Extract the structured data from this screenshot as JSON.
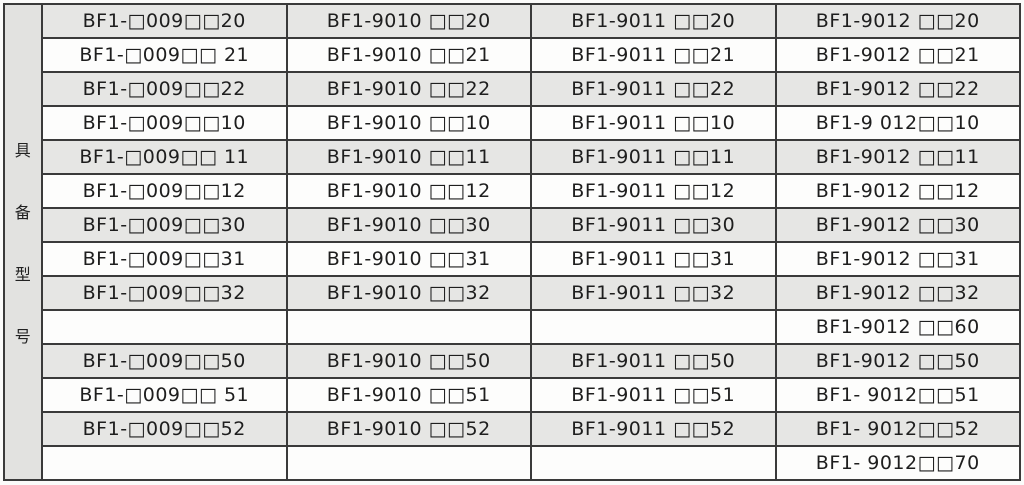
{
  "side_label": [
    "具",
    "备",
    "型",
    "号"
  ],
  "rows": [
    [
      "BF1-□009□□20",
      "BF1-9010 □□20",
      "BF1-9011 □□20",
      "BF1-9012 □□20"
    ],
    [
      "BF1-□009□□ 21",
      "BF1-9010 □□21",
      "BF1-9011 □□21",
      "BF1-9012 □□21"
    ],
    [
      "BF1-□009□□22",
      "BF1-9010 □□22",
      "BF1-9011 □□22",
      "BF1-9012 □□22"
    ],
    [
      "BF1-□009□□10",
      "BF1-9010 □□10",
      "BF1-9011 □□10",
      "BF1-9 012□□10"
    ],
    [
      "BF1-□009□□ 11",
      "BF1-9010 □□11",
      "BF1-9011 □□11",
      "BF1-9012 □□11"
    ],
    [
      "BF1-□009□□12",
      "BF1-9010 □□12",
      "BF1-9011 □□12",
      "BF1-9012 □□12"
    ],
    [
      "BF1-□009□□30",
      "BF1-9010 □□30",
      "BF1-9011 □□30",
      "BF1-9012 □□30"
    ],
    [
      "BF1-□009□□31",
      "BF1-9010 □□31",
      "BF1-9011 □□31",
      "BF1-9012 □□31"
    ],
    [
      "BF1-□009□□32",
      "BF1-9010 □□32",
      "BF1-9011 □□32",
      "BF1-9012 □□32"
    ],
    [
      "",
      "",
      "",
      "BF1-9012 □□60"
    ],
    [
      "BF1-□009□□50",
      "BF1-9010 □□50",
      "BF1-9011 □□50",
      "BF1-9012 □□50"
    ],
    [
      "BF1-□009□□ 51",
      "BF1-9010 □□51",
      "BF1-9011 □□51",
      "BF1- 9012□□51"
    ],
    [
      "BF1-□009□□52",
      "BF1-9010 □□52",
      "BF1-9011 □□52",
      "BF1- 9012□□52"
    ],
    [
      "",
      "",
      "",
      "BF1- 9012□□70"
    ]
  ]
}
